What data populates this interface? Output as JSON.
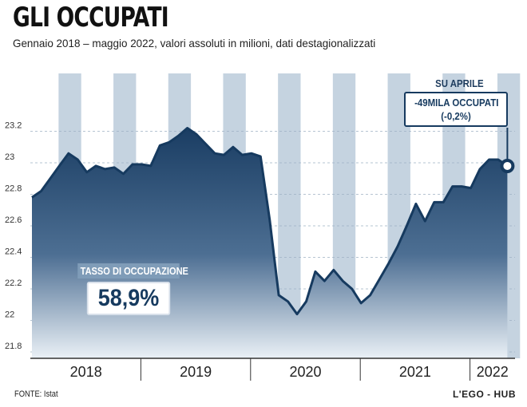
{
  "title": "GLI OCCUPATI",
  "subtitle": "Gennaio 2018 – maggio 2022, valori assoluti in milioni, dati destagionalizzati",
  "source": "FONTE: Istat",
  "brand": "L'EGO - HUB",
  "rate": {
    "label": "TASSO DI OCCUPAZIONE",
    "value": "58,9%"
  },
  "callout": {
    "title": "SU APRILE",
    "line1": "-49MILA OCCUPATI",
    "line2": "(-0,2%)"
  },
  "colors": {
    "accent": "#163a5f",
    "stripe": "#c5d3e0",
    "area_top": "#1a3d63",
    "area_bottom": "#eaf0f6"
  },
  "chart_data": {
    "type": "area",
    "title": "GLI OCCUPATI",
    "ylim": [
      21.8,
      23.4
    ],
    "yticks": [
      "21.8",
      "22",
      "22.2",
      "22.4",
      "22.6",
      "22.8",
      "23",
      "23.2"
    ],
    "ytick_values": [
      21.8,
      22.0,
      22.2,
      22.4,
      22.6,
      22.8,
      23.0,
      23.2
    ],
    "year_labels": [
      "2018",
      "2019",
      "2020",
      "2021",
      "2022"
    ],
    "x_unit": "mese (gennaio 2018 = 0)",
    "series": [
      {
        "x": [
          0,
          1,
          2,
          3,
          4,
          5,
          6,
          7,
          8,
          9,
          10,
          11,
          12,
          13,
          14,
          15,
          16,
          17,
          18,
          19,
          20,
          21,
          22,
          23,
          24,
          25,
          26,
          27,
          28,
          29,
          30,
          31,
          32,
          33,
          34,
          35,
          36,
          37,
          38,
          39,
          40,
          41,
          42,
          43,
          44,
          45,
          46,
          47,
          48,
          49,
          50,
          51,
          52
        ],
        "values": [
          22.78,
          22.82,
          22.9,
          22.98,
          23.06,
          23.02,
          22.94,
          22.98,
          22.96,
          22.97,
          22.93,
          22.99,
          22.99,
          22.98,
          23.11,
          23.13,
          23.17,
          23.22,
          23.18,
          23.12,
          23.06,
          23.05,
          23.1,
          23.05,
          23.06,
          23.04,
          22.64,
          22.16,
          22.12,
          22.04,
          22.12,
          22.31,
          22.25,
          22.32,
          22.25,
          22.2,
          22.11,
          22.16,
          22.26,
          22.36,
          22.47,
          22.6,
          22.74,
          22.63,
          22.75,
          22.75,
          22.85,
          22.85,
          22.84,
          22.96,
          23.02,
          23.02,
          22.98
        ]
      }
    ]
  }
}
